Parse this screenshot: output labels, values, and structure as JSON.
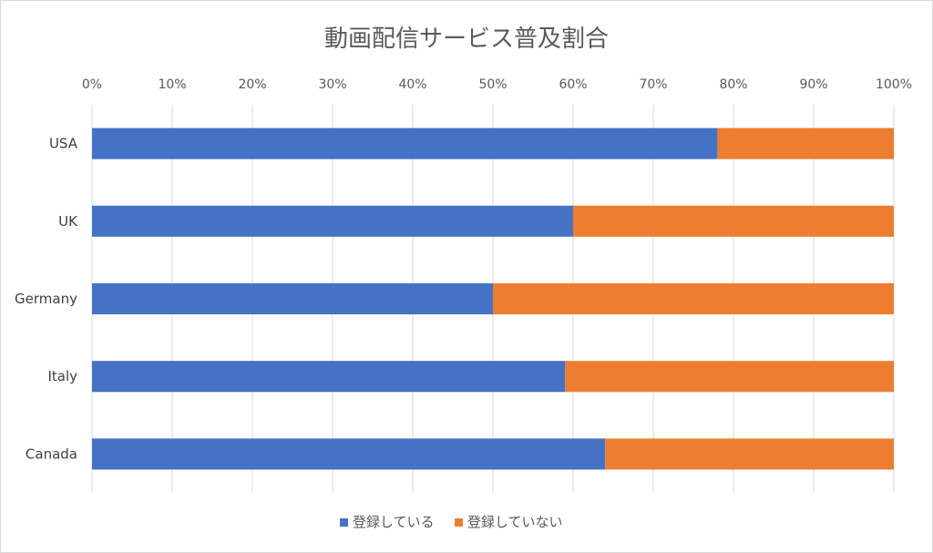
{
  "chart_data": {
    "type": "bar",
    "orientation": "horizontal",
    "stacked": "percent",
    "title": "動画配信サービス普及割合",
    "categories": [
      "USA",
      "UK",
      "Germany",
      "Italy",
      "Canada"
    ],
    "series": [
      {
        "name": "登録している",
        "color": "#4472C4",
        "values": [
          78,
          60,
          50,
          59,
          64
        ]
      },
      {
        "name": "登録していない",
        "color": "#ED7D31",
        "values": [
          22,
          40,
          50,
          41,
          36
        ]
      }
    ],
    "xlim": [
      0,
      100
    ],
    "x_ticks": [
      "0%",
      "10%",
      "20%",
      "30%",
      "40%",
      "50%",
      "60%",
      "70%",
      "80%",
      "90%",
      "100%"
    ],
    "x_axis_position": "top",
    "category_order": "top-to-bottom",
    "grid": true,
    "legend_position": "bottom"
  }
}
